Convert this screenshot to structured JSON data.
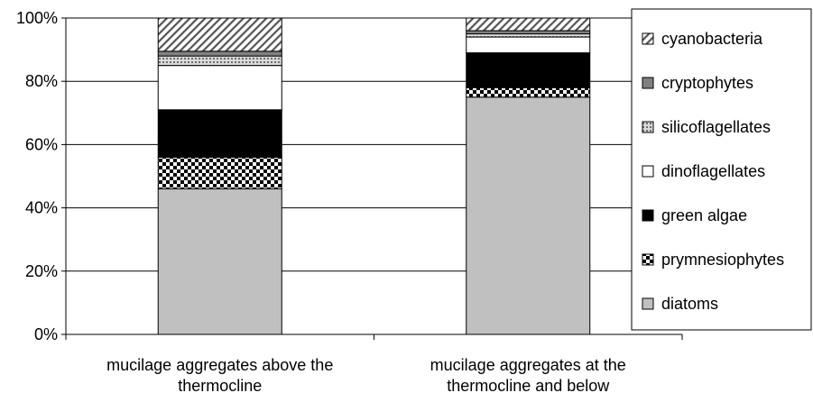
{
  "chart_data": {
    "type": "bar",
    "stacked": true,
    "percent": true,
    "categories": [
      [
        "mucilage aggregates above the",
        "thermocline"
      ],
      [
        "mucilage aggregates at the",
        "thermocline and below"
      ]
    ],
    "series": [
      {
        "name": "diatoms",
        "values": [
          46,
          75
        ],
        "fill": "#c0c0c0",
        "pattern": "solid"
      },
      {
        "name": "prymnesiophytes",
        "values": [
          10,
          3
        ],
        "fill": "#000000",
        "pattern": "check"
      },
      {
        "name": "green algae",
        "values": [
          15,
          11
        ],
        "fill": "#000000",
        "pattern": "solid"
      },
      {
        "name": "dinoflagellates",
        "values": [
          14,
          5
        ],
        "fill": "#ffffff",
        "pattern": "solid"
      },
      {
        "name": "silicoflagellates",
        "values": [
          3,
          1
        ],
        "fill": "#bdbdbd",
        "pattern": "dots"
      },
      {
        "name": "cryptophytes",
        "values": [
          1.5,
          1
        ],
        "fill": "#808080",
        "pattern": "solid"
      },
      {
        "name": "cyanobacteria",
        "values": [
          10.5,
          4
        ],
        "fill": "#ffffff",
        "pattern": "diag"
      }
    ],
    "legend_order": [
      "cyanobacteria",
      "cryptophytes",
      "silicoflagellates",
      "dinoflagellates",
      "green algae",
      "prymnesiophytes",
      "diatoms"
    ],
    "yticks": [
      "0%",
      "20%",
      "40%",
      "60%",
      "80%",
      "100%"
    ],
    "ylim": [
      0,
      100
    ],
    "grid": true,
    "legend_position": "right",
    "xlabel": "",
    "ylabel": "",
    "title": ""
  }
}
